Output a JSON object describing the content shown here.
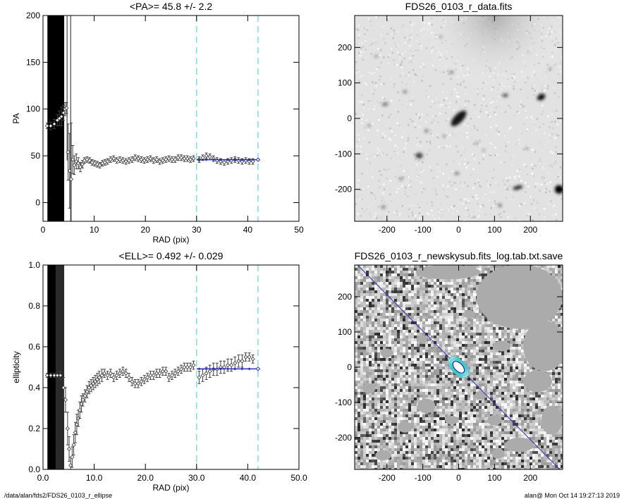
{
  "footer": {
    "left_path": "/data/alan/fds2/FDS26_0103_r_ellipse",
    "right_stamp": "alan@  Mon Oct 14 19:27:13 2019"
  },
  "colors": {
    "fit_line": "#2a2ab0",
    "marker_line": "#7fe0e0",
    "contour": "#3fc8c8",
    "data_points": "#404040"
  },
  "chart_data": [
    {
      "id": "pa",
      "type": "scatter",
      "title": "<PA>=  45.8 +/-   2.2",
      "xlabel": "RAD (pix)",
      "ylabel": "PA",
      "xlim": [
        0,
        50
      ],
      "ylim": [
        -20,
        200
      ],
      "xticks": [
        0,
        10,
        20,
        30,
        40,
        50
      ],
      "yticks": [
        0,
        50,
        100,
        150,
        200
      ],
      "grid": false,
      "vlines": [
        30,
        42
      ],
      "fit": {
        "x": [
          30,
          42
        ],
        "y": [
          45.8,
          45.8
        ]
      },
      "shaded_region": [
        1,
        4
      ],
      "points": [
        {
          "x": 0.8,
          "y": 82,
          "e": 3
        },
        {
          "x": 1.5,
          "y": 82,
          "e": 4
        },
        {
          "x": 2.2,
          "y": 84,
          "e": 5
        },
        {
          "x": 2.8,
          "y": 88,
          "e": 6
        },
        {
          "x": 3.2,
          "y": 90,
          "e": 8
        },
        {
          "x": 3.6,
          "y": 92,
          "e": 10
        },
        {
          "x": 4.0,
          "y": 96,
          "e": 8
        },
        {
          "x": 4.3,
          "y": 100,
          "e": 7
        },
        {
          "x": 4.6,
          "y": 101,
          "e": 6
        },
        {
          "x": 4.9,
          "y": 54,
          "e": 30
        },
        {
          "x": 5.2,
          "y": 34,
          "e": 40
        },
        {
          "x": 5.5,
          "y": 25,
          "e": 60
        },
        {
          "x": 5.8,
          "y": 46,
          "e": 15
        },
        {
          "x": 6.1,
          "y": 40,
          "e": 10
        },
        {
          "x": 6.5,
          "y": 44,
          "e": 8
        },
        {
          "x": 6.9,
          "y": 42,
          "e": 6
        },
        {
          "x": 7.3,
          "y": 38,
          "e": 5
        },
        {
          "x": 7.7,
          "y": 41,
          "e": 4
        },
        {
          "x": 8.1,
          "y": 45,
          "e": 3
        },
        {
          "x": 8.6,
          "y": 46,
          "e": 3
        },
        {
          "x": 9.1,
          "y": 45,
          "e": 3
        },
        {
          "x": 9.6,
          "y": 43,
          "e": 3
        },
        {
          "x": 10.1,
          "y": 42,
          "e": 3
        },
        {
          "x": 10.6,
          "y": 41,
          "e": 3
        },
        {
          "x": 11.1,
          "y": 40,
          "e": 3
        },
        {
          "x": 11.6,
          "y": 42,
          "e": 3
        },
        {
          "x": 12.1,
          "y": 43,
          "e": 3
        },
        {
          "x": 12.6,
          "y": 44,
          "e": 3
        },
        {
          "x": 13.2,
          "y": 46,
          "e": 3
        },
        {
          "x": 13.8,
          "y": 47,
          "e": 3
        },
        {
          "x": 14.4,
          "y": 45,
          "e": 3
        },
        {
          "x": 15.0,
          "y": 46,
          "e": 3
        },
        {
          "x": 15.6,
          "y": 45,
          "e": 3
        },
        {
          "x": 16.2,
          "y": 44,
          "e": 3
        },
        {
          "x": 16.8,
          "y": 45,
          "e": 3
        },
        {
          "x": 17.4,
          "y": 46,
          "e": 3
        },
        {
          "x": 18.0,
          "y": 48,
          "e": 3
        },
        {
          "x": 18.6,
          "y": 47,
          "e": 3
        },
        {
          "x": 19.2,
          "y": 46,
          "e": 3
        },
        {
          "x": 19.8,
          "y": 45,
          "e": 3
        },
        {
          "x": 20.4,
          "y": 46,
          "e": 3
        },
        {
          "x": 21.0,
          "y": 47,
          "e": 3
        },
        {
          "x": 21.6,
          "y": 45,
          "e": 3
        },
        {
          "x": 22.2,
          "y": 46,
          "e": 3
        },
        {
          "x": 22.8,
          "y": 44,
          "e": 3
        },
        {
          "x": 23.4,
          "y": 45,
          "e": 3
        },
        {
          "x": 24.0,
          "y": 46,
          "e": 3
        },
        {
          "x": 24.6,
          "y": 47,
          "e": 3
        },
        {
          "x": 25.2,
          "y": 46,
          "e": 3
        },
        {
          "x": 25.8,
          "y": 46,
          "e": 3
        },
        {
          "x": 26.4,
          "y": 48,
          "e": 3
        },
        {
          "x": 27.0,
          "y": 48,
          "e": 3
        },
        {
          "x": 27.6,
          "y": 47,
          "e": 3
        },
        {
          "x": 28.2,
          "y": 47,
          "e": 3
        },
        {
          "x": 28.8,
          "y": 46,
          "e": 3
        },
        {
          "x": 29.4,
          "y": 47,
          "e": 3
        },
        {
          "x": 30.5,
          "y": 46,
          "e": 3
        },
        {
          "x": 31.2,
          "y": 48,
          "e": 3
        },
        {
          "x": 31.9,
          "y": 50,
          "e": 3
        },
        {
          "x": 32.6,
          "y": 49,
          "e": 3
        },
        {
          "x": 33.3,
          "y": 47,
          "e": 3
        },
        {
          "x": 34.0,
          "y": 45,
          "e": 3
        },
        {
          "x": 34.7,
          "y": 44,
          "e": 3
        },
        {
          "x": 35.4,
          "y": 43,
          "e": 3
        },
        {
          "x": 36.1,
          "y": 44,
          "e": 3
        },
        {
          "x": 36.8,
          "y": 45,
          "e": 3
        },
        {
          "x": 37.5,
          "y": 46,
          "e": 3
        },
        {
          "x": 38.2,
          "y": 45,
          "e": 3
        },
        {
          "x": 38.9,
          "y": 44,
          "e": 3
        },
        {
          "x": 39.6,
          "y": 45,
          "e": 3
        },
        {
          "x": 40.3,
          "y": 44,
          "e": 3
        },
        {
          "x": 41.0,
          "y": 44,
          "e": 3
        }
      ]
    },
    {
      "id": "ell",
      "type": "scatter",
      "title": "<ELL>= 0.492 +/-  0.029",
      "xlabel": "RAD (pix)",
      "ylabel": "ellipticity",
      "xlim": [
        0,
        50
      ],
      "ylim": [
        0,
        1
      ],
      "xticks": [
        0,
        10,
        20,
        30,
        40,
        50
      ],
      "yticks": [
        0.0,
        0.2,
        0.4,
        0.6,
        0.8,
        1.0
      ],
      "grid": false,
      "vlines": [
        30,
        42
      ],
      "fit": {
        "x": [
          30,
          42
        ],
        "y": [
          0.492,
          0.492
        ]
      },
      "shaded_region": [
        1,
        4
      ],
      "points": [
        {
          "x": 0.8,
          "y": 0.46,
          "e": 0.01
        },
        {
          "x": 1.5,
          "y": 0.46,
          "e": 0.01
        },
        {
          "x": 2.2,
          "y": 0.46,
          "e": 0.01
        },
        {
          "x": 2.8,
          "y": 0.46,
          "e": 0.01
        },
        {
          "x": 3.4,
          "y": 0.46,
          "e": 0.02
        },
        {
          "x": 4.0,
          "y": 0.4,
          "e": 0.05
        },
        {
          "x": 4.4,
          "y": 0.34,
          "e": 0.06
        },
        {
          "x": 4.8,
          "y": 0.2,
          "e": 0.08
        },
        {
          "x": 5.1,
          "y": 0.1,
          "e": 0.06
        },
        {
          "x": 5.4,
          "y": 0.02,
          "e": 0.04
        },
        {
          "x": 5.7,
          "y": 0.06,
          "e": 0.05
        },
        {
          "x": 6.0,
          "y": 0.12,
          "e": 0.05
        },
        {
          "x": 6.3,
          "y": 0.18,
          "e": 0.05
        },
        {
          "x": 6.6,
          "y": 0.22,
          "e": 0.05
        },
        {
          "x": 6.9,
          "y": 0.25,
          "e": 0.04
        },
        {
          "x": 7.2,
          "y": 0.29,
          "e": 0.04
        },
        {
          "x": 7.5,
          "y": 0.32,
          "e": 0.04
        },
        {
          "x": 7.8,
          "y": 0.34,
          "e": 0.03
        },
        {
          "x": 8.2,
          "y": 0.36,
          "e": 0.03
        },
        {
          "x": 8.6,
          "y": 0.38,
          "e": 0.03
        },
        {
          "x": 9.0,
          "y": 0.4,
          "e": 0.03
        },
        {
          "x": 9.4,
          "y": 0.41,
          "e": 0.03
        },
        {
          "x": 9.8,
          "y": 0.42,
          "e": 0.03
        },
        {
          "x": 10.2,
          "y": 0.43,
          "e": 0.03
        },
        {
          "x": 10.6,
          "y": 0.44,
          "e": 0.03
        },
        {
          "x": 11.0,
          "y": 0.45,
          "e": 0.03
        },
        {
          "x": 11.5,
          "y": 0.46,
          "e": 0.03
        },
        {
          "x": 12.0,
          "y": 0.47,
          "e": 0.02
        },
        {
          "x": 12.6,
          "y": 0.46,
          "e": 0.02
        },
        {
          "x": 13.2,
          "y": 0.47,
          "e": 0.02
        },
        {
          "x": 13.8,
          "y": 0.45,
          "e": 0.02
        },
        {
          "x": 14.4,
          "y": 0.46,
          "e": 0.02
        },
        {
          "x": 15.0,
          "y": 0.47,
          "e": 0.02
        },
        {
          "x": 15.6,
          "y": 0.48,
          "e": 0.02
        },
        {
          "x": 16.2,
          "y": 0.47,
          "e": 0.02
        },
        {
          "x": 16.8,
          "y": 0.45,
          "e": 0.02
        },
        {
          "x": 17.4,
          "y": 0.43,
          "e": 0.02
        },
        {
          "x": 18.0,
          "y": 0.42,
          "e": 0.02
        },
        {
          "x": 18.6,
          "y": 0.42,
          "e": 0.02
        },
        {
          "x": 19.2,
          "y": 0.43,
          "e": 0.02
        },
        {
          "x": 19.8,
          "y": 0.44,
          "e": 0.02
        },
        {
          "x": 20.4,
          "y": 0.45,
          "e": 0.02
        },
        {
          "x": 21.0,
          "y": 0.46,
          "e": 0.02
        },
        {
          "x": 21.6,
          "y": 0.46,
          "e": 0.02
        },
        {
          "x": 22.2,
          "y": 0.47,
          "e": 0.02
        },
        {
          "x": 22.8,
          "y": 0.47,
          "e": 0.02
        },
        {
          "x": 23.4,
          "y": 0.48,
          "e": 0.02
        },
        {
          "x": 24.0,
          "y": 0.48,
          "e": 0.02
        },
        {
          "x": 24.6,
          "y": 0.45,
          "e": 0.02
        },
        {
          "x": 25.2,
          "y": 0.46,
          "e": 0.02
        },
        {
          "x": 25.8,
          "y": 0.47,
          "e": 0.02
        },
        {
          "x": 26.4,
          "y": 0.48,
          "e": 0.02
        },
        {
          "x": 27.0,
          "y": 0.49,
          "e": 0.02
        },
        {
          "x": 27.6,
          "y": 0.5,
          "e": 0.02
        },
        {
          "x": 28.2,
          "y": 0.5,
          "e": 0.02
        },
        {
          "x": 28.8,
          "y": 0.5,
          "e": 0.02
        },
        {
          "x": 29.4,
          "y": 0.51,
          "e": 0.02
        },
        {
          "x": 30.5,
          "y": 0.45,
          "e": 0.03
        },
        {
          "x": 31.2,
          "y": 0.46,
          "e": 0.03
        },
        {
          "x": 31.9,
          "y": 0.47,
          "e": 0.03
        },
        {
          "x": 32.6,
          "y": 0.48,
          "e": 0.03
        },
        {
          "x": 33.3,
          "y": 0.49,
          "e": 0.03
        },
        {
          "x": 34.0,
          "y": 0.49,
          "e": 0.03
        },
        {
          "x": 34.7,
          "y": 0.5,
          "e": 0.03
        },
        {
          "x": 35.4,
          "y": 0.5,
          "e": 0.03
        },
        {
          "x": 36.1,
          "y": 0.51,
          "e": 0.03
        },
        {
          "x": 36.8,
          "y": 0.51,
          "e": 0.03
        },
        {
          "x": 37.5,
          "y": 0.52,
          "e": 0.03
        },
        {
          "x": 38.2,
          "y": 0.53,
          "e": 0.03
        },
        {
          "x": 38.9,
          "y": 0.53,
          "e": 0.03
        },
        {
          "x": 39.6,
          "y": 0.55,
          "e": 0.02
        },
        {
          "x": 40.3,
          "y": 0.55,
          "e": 0.02
        },
        {
          "x": 41.0,
          "y": 0.54,
          "e": 0.02
        }
      ]
    },
    {
      "id": "data_image",
      "type": "heatmap",
      "title": "FDS26_0103_r_data.fits",
      "xlim": [
        -290,
        290
      ],
      "ylim": [
        -290,
        290
      ],
      "xticks": [
        -200,
        -100,
        0,
        100,
        200
      ],
      "yticks": [
        -200,
        -100,
        0,
        100,
        200
      ],
      "colormap": "grey-inverted",
      "sources": [
        {
          "x": 0,
          "y": 0,
          "rx": 28,
          "ry": 12,
          "angle": 45.8,
          "level": 0.9
        },
        {
          "x": 230,
          "y": 60,
          "rx": 12,
          "ry": 8,
          "angle": 30,
          "level": 0.95
        },
        {
          "x": 280,
          "y": -200,
          "rx": 12,
          "ry": 12,
          "angle": 0,
          "level": 1.0
        },
        {
          "x": 165,
          "y": -195,
          "rx": 14,
          "ry": 6,
          "angle": 15,
          "level": 0.8
        },
        {
          "x": -110,
          "y": -105,
          "rx": 10,
          "ry": 8,
          "angle": 0,
          "level": 0.75
        },
        {
          "x": -150,
          "y": 75,
          "rx": 6,
          "ry": 4,
          "angle": 0,
          "level": 0.55
        },
        {
          "x": -205,
          "y": 40,
          "rx": 9,
          "ry": 5,
          "angle": 10,
          "level": 0.55
        },
        {
          "x": 130,
          "y": 65,
          "rx": 8,
          "ry": 5,
          "angle": 0,
          "level": 0.7
        },
        {
          "x": -90,
          "y": -35,
          "rx": 5,
          "ry": 5,
          "angle": 0,
          "level": 0.55
        },
        {
          "x": -40,
          "y": -50,
          "rx": 4,
          "ry": 4,
          "angle": 0,
          "level": 0.5
        },
        {
          "x": -210,
          "y": -250,
          "rx": 6,
          "ry": 4,
          "angle": 0,
          "level": 0.6
        },
        {
          "x": 115,
          "y": -245,
          "rx": 5,
          "ry": 5,
          "angle": 0,
          "level": 0.6
        },
        {
          "x": -5,
          "y": -155,
          "rx": 7,
          "ry": 4,
          "angle": 0,
          "level": 0.55
        },
        {
          "x": -160,
          "y": -170,
          "rx": 5,
          "ry": 4,
          "angle": 0,
          "level": 0.55
        },
        {
          "x": 50,
          "y": -70,
          "rx": 4,
          "ry": 4,
          "angle": 0,
          "level": 0.5
        },
        {
          "x": 190,
          "y": -85,
          "rx": 4,
          "ry": 4,
          "angle": 0,
          "level": 0.5
        },
        {
          "x": -250,
          "y": -20,
          "rx": 4,
          "ry": 4,
          "angle": 0,
          "level": 0.5
        },
        {
          "x": -20,
          "y": 130,
          "rx": 6,
          "ry": 4,
          "angle": 0,
          "level": 0.55
        },
        {
          "x": -50,
          "y": 230,
          "rx": 4,
          "ry": 4,
          "angle": 0,
          "level": 0.45
        },
        {
          "x": 70,
          "y": -90,
          "rx": 4,
          "ry": 3,
          "angle": 0,
          "level": 0.5
        },
        {
          "x": 255,
          "y": 140,
          "rx": 4,
          "ry": 4,
          "angle": 0,
          "level": 0.45
        },
        {
          "x": -230,
          "y": 175,
          "rx": 5,
          "ry": 4,
          "angle": 0,
          "level": 0.45
        }
      ],
      "extended_glow": {
        "x": 100,
        "y": 290,
        "r": 220
      }
    },
    {
      "id": "mask_image",
      "type": "heatmap",
      "title": "FDS26_0103_r_newskysub.fits_log.tab.txt.save",
      "xlim": [
        -290,
        290
      ],
      "ylim": [
        -290,
        290
      ],
      "xticks": [
        -200,
        -100,
        0,
        100,
        200
      ],
      "yticks": [
        -200,
        -100,
        0,
        100,
        200
      ],
      "colormap": "grey-noise",
      "pa_line_deg": 45.8,
      "contours": [
        {
          "a": 22,
          "b": 13,
          "angle": 45.8
        },
        {
          "a": 26,
          "b": 15,
          "angle": 45.8
        },
        {
          "a": 30,
          "b": 17,
          "angle": 45.8
        },
        {
          "a": 35,
          "b": 19,
          "angle": 45.8
        }
      ],
      "masked_regions": [
        {
          "x": -30,
          "y": 270,
          "rx": 90,
          "ry": 20
        },
        {
          "x": 170,
          "y": 200,
          "rx": 120,
          "ry": 90
        },
        {
          "x": 240,
          "y": 60,
          "rx": 60,
          "ry": 70
        },
        {
          "x": 120,
          "y": 60,
          "rx": 25,
          "ry": 15
        },
        {
          "x": 220,
          "y": -40,
          "rx": 40,
          "ry": 30
        },
        {
          "x": 170,
          "y": -220,
          "rx": 40,
          "ry": 20
        },
        {
          "x": -90,
          "y": -110,
          "rx": 25,
          "ry": 20
        },
        {
          "x": -200,
          "y": 40,
          "rx": 18,
          "ry": 12
        },
        {
          "x": -150,
          "y": -170,
          "rx": 20,
          "ry": 15
        },
        {
          "x": -210,
          "y": -250,
          "rx": 22,
          "ry": 14
        },
        {
          "x": 110,
          "y": -245,
          "rx": 18,
          "ry": 14
        },
        {
          "x": -20,
          "y": -150,
          "rx": 18,
          "ry": 12
        },
        {
          "x": 60,
          "y": -80,
          "rx": 15,
          "ry": 12
        },
        {
          "x": 100,
          "y": -150,
          "rx": 20,
          "ry": 15
        },
        {
          "x": -250,
          "y": -60,
          "rx": 18,
          "ry": 14
        },
        {
          "x": -100,
          "y": 80,
          "rx": 14,
          "ry": 10
        },
        {
          "x": 30,
          "y": 150,
          "rx": 16,
          "ry": 12
        },
        {
          "x": 260,
          "y": -150,
          "rx": 30,
          "ry": 40
        }
      ]
    }
  ]
}
